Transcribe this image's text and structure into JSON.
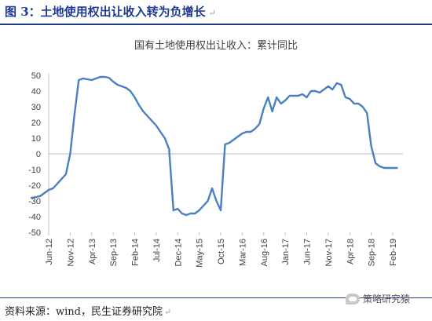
{
  "figure": {
    "title": "图 3：土地使用权出让收入转为负增长",
    "source": "资料来源：wind，民生证券研究院",
    "watermark": "策略研究猿",
    "return_mark": "↵"
  },
  "colors": {
    "line": "#4a7fc1",
    "title": "#1f3a93",
    "axis": "#bfbfbf",
    "text": "#404040"
  },
  "chart_data": {
    "type": "line",
    "title": "国有土地使用权出让收入：累计同比",
    "xlabel": "",
    "ylabel": "",
    "ylim": [
      -50,
      50
    ],
    "yticks": [
      50,
      40,
      30,
      20,
      10,
      0,
      -10,
      -20,
      -30,
      -40,
      -50
    ],
    "grid": false,
    "legend": "none",
    "x_tick_labels": [
      "Jun-12",
      "Nov-12",
      "Apr-13",
      "Sep-13",
      "Feb-14",
      "Jul-14",
      "Dec-14",
      "May-15",
      "Oct-15",
      "Mar-16",
      "Aug-16",
      "Jan-17",
      "Jun-17",
      "Nov-17",
      "Apr-18",
      "Sep-18",
      "Feb-19"
    ],
    "series": [
      {
        "name": "",
        "x": [
          "2012-02",
          "2012-03",
          "2012-04",
          "2012-05",
          "2012-06",
          "2012-07",
          "2012-08",
          "2012-09",
          "2012-10",
          "2012-11",
          "2012-12",
          "2013-01",
          "2013-02",
          "2013-03",
          "2013-04",
          "2013-05",
          "2013-06",
          "2013-07",
          "2013-08",
          "2013-09",
          "2013-10",
          "2013-11",
          "2013-12",
          "2014-01",
          "2014-02",
          "2014-03",
          "2014-04",
          "2014-05",
          "2014-06",
          "2014-07",
          "2014-08",
          "2014-09",
          "2014-10",
          "2014-11",
          "2014-12",
          "2015-01",
          "2015-02",
          "2015-03",
          "2015-04",
          "2015-05",
          "2015-06",
          "2015-07",
          "2015-08",
          "2015-09",
          "2015-10",
          "2015-11",
          "2015-12",
          "2016-01",
          "2016-02",
          "2016-03",
          "2016-04",
          "2016-05",
          "2016-06",
          "2016-07",
          "2016-08",
          "2016-09",
          "2016-10",
          "2016-11",
          "2016-12",
          "2017-01",
          "2017-02",
          "2017-03",
          "2017-04",
          "2017-05",
          "2017-06",
          "2017-07",
          "2017-08",
          "2017-09",
          "2017-10",
          "2017-11",
          "2017-12",
          "2018-01",
          "2018-02",
          "2018-03",
          "2018-04",
          "2018-05",
          "2018-06",
          "2018-07",
          "2018-08",
          "2018-09",
          "2018-10",
          "2018-11",
          "2018-12",
          "2019-01",
          "2019-02",
          "2019-03"
        ],
        "values": [
          -28,
          -27.5,
          -27,
          -25,
          -23,
          -22,
          -19,
          -16,
          -13,
          0,
          25,
          47,
          48,
          47.5,
          47,
          48,
          49,
          49,
          48.5,
          46,
          44,
          43,
          42,
          40,
          36,
          31,
          27,
          24,
          21,
          18,
          14,
          10,
          3,
          -36,
          -35,
          -38,
          -39,
          -38,
          -38,
          -36,
          -33,
          -30,
          -22,
          -30,
          -36,
          6,
          7,
          9,
          11,
          13,
          14,
          14,
          16,
          19,
          29,
          36,
          27,
          36,
          32,
          34,
          37,
          37,
          37,
          38,
          36,
          40,
          40,
          39,
          41,
          43,
          41,
          45,
          44,
          36,
          35,
          32,
          32,
          30,
          26,
          5,
          -6,
          -8,
          -9,
          -9,
          -9,
          -9
        ]
      }
    ]
  }
}
